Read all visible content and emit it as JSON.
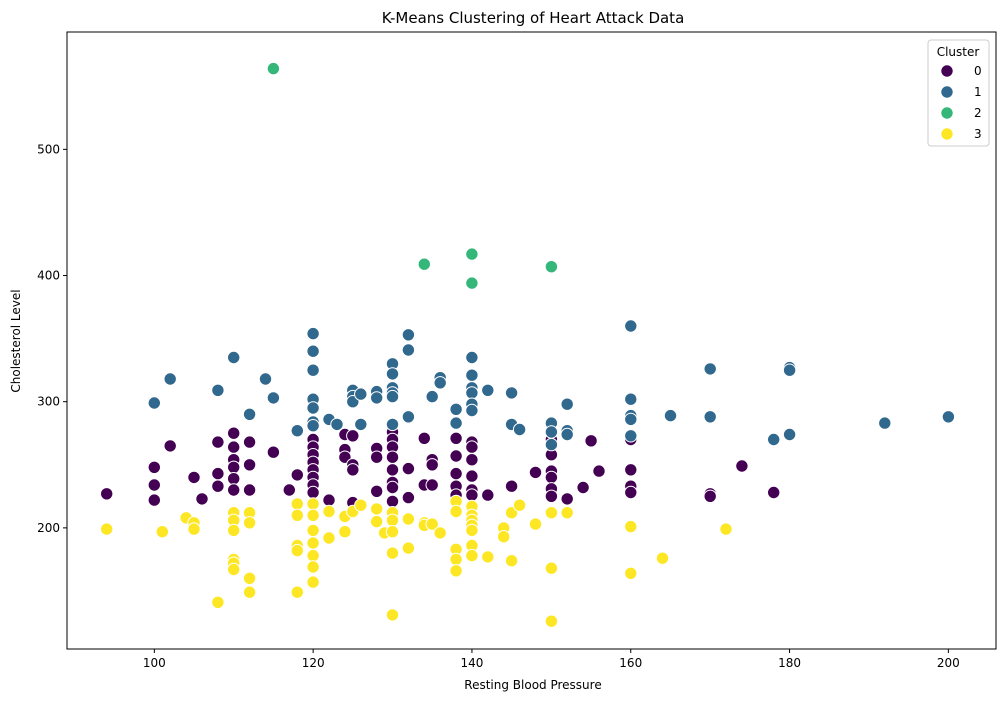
{
  "chart_data": {
    "type": "scatter",
    "title": "K-Means Clustering of Heart Attack Data",
    "xlabel": "Resting Blood Pressure",
    "ylabel": "Cholesterol Level",
    "xlim": [
      89,
      206
    ],
    "ylim": [
      104,
      593
    ],
    "xticks": [
      100,
      120,
      140,
      160,
      180,
      200
    ],
    "yticks": [
      200,
      300,
      400,
      500
    ],
    "grid": false,
    "legend": {
      "title": "Cluster",
      "placement": "top-right"
    },
    "series": [
      {
        "name": "0",
        "color": "#440154",
        "points": [
          [
            94,
            227
          ],
          [
            100,
            248
          ],
          [
            100,
            234
          ],
          [
            100,
            222
          ],
          [
            102,
            265
          ],
          [
            105,
            240
          ],
          [
            106,
            223
          ],
          [
            108,
            268
          ],
          [
            108,
            243
          ],
          [
            108,
            233
          ],
          [
            110,
            275
          ],
          [
            110,
            264
          ],
          [
            110,
            254
          ],
          [
            110,
            248
          ],
          [
            110,
            239
          ],
          [
            110,
            230
          ],
          [
            112,
            268
          ],
          [
            112,
            250
          ],
          [
            112,
            230
          ],
          [
            115,
            260
          ],
          [
            117,
            230
          ],
          [
            118,
            242
          ],
          [
            120,
            270
          ],
          [
            120,
            264
          ],
          [
            120,
            258
          ],
          [
            120,
            252
          ],
          [
            120,
            246
          ],
          [
            120,
            240
          ],
          [
            120,
            234
          ],
          [
            120,
            228
          ],
          [
            122,
            222
          ],
          [
            124,
            274
          ],
          [
            124,
            262
          ],
          [
            124,
            256
          ],
          [
            125,
            273
          ],
          [
            125,
            250
          ],
          [
            125,
            246
          ],
          [
            125,
            220
          ],
          [
            128,
            263
          ],
          [
            128,
            256
          ],
          [
            128,
            229
          ],
          [
            130,
            276
          ],
          [
            130,
            270
          ],
          [
            130,
            264
          ],
          [
            130,
            256
          ],
          [
            130,
            246
          ],
          [
            130,
            236
          ],
          [
            130,
            232
          ],
          [
            130,
            221
          ],
          [
            132,
            247
          ],
          [
            132,
            224
          ],
          [
            134,
            271
          ],
          [
            134,
            234
          ],
          [
            135,
            254
          ],
          [
            135,
            250
          ],
          [
            135,
            234
          ],
          [
            138,
            271
          ],
          [
            138,
            257
          ],
          [
            138,
            243
          ],
          [
            138,
            233
          ],
          [
            138,
            226
          ],
          [
            140,
            268
          ],
          [
            140,
            264
          ],
          [
            140,
            254
          ],
          [
            140,
            241
          ],
          [
            140,
            230
          ],
          [
            140,
            226
          ],
          [
            142,
            226
          ],
          [
            145,
            233
          ],
          [
            148,
            244
          ],
          [
            150,
            270
          ],
          [
            150,
            258
          ],
          [
            150,
            245
          ],
          [
            150,
            240
          ],
          [
            150,
            231
          ],
          [
            150,
            225
          ],
          [
            152,
            223
          ],
          [
            154,
            232
          ],
          [
            155,
            269
          ],
          [
            156,
            245
          ],
          [
            160,
            270
          ],
          [
            160,
            246
          ],
          [
            160,
            233
          ],
          [
            160,
            228
          ],
          [
            170,
            227
          ],
          [
            170,
            225
          ],
          [
            174,
            249
          ],
          [
            178,
            228
          ]
        ]
      },
      {
        "name": "1",
        "color": "#31688e",
        "points": [
          [
            100,
            299
          ],
          [
            102,
            318
          ],
          [
            108,
            309
          ],
          [
            110,
            335
          ],
          [
            112,
            290
          ],
          [
            114,
            318
          ],
          [
            115,
            303
          ],
          [
            118,
            277
          ],
          [
            120,
            354
          ],
          [
            120,
            340
          ],
          [
            120,
            325
          ],
          [
            120,
            302
          ],
          [
            120,
            295
          ],
          [
            120,
            284
          ],
          [
            120,
            281
          ],
          [
            122,
            286
          ],
          [
            123,
            282
          ],
          [
            125,
            309
          ],
          [
            125,
            304
          ],
          [
            125,
            300
          ],
          [
            126,
            306
          ],
          [
            126,
            282
          ],
          [
            128,
            308
          ],
          [
            128,
            303
          ],
          [
            130,
            330
          ],
          [
            130,
            322
          ],
          [
            130,
            311
          ],
          [
            130,
            307
          ],
          [
            130,
            304
          ],
          [
            130,
            282
          ],
          [
            132,
            353
          ],
          [
            132,
            341
          ],
          [
            132,
            288
          ],
          [
            135,
            304
          ],
          [
            136,
            319
          ],
          [
            136,
            315
          ],
          [
            138,
            294
          ],
          [
            138,
            283
          ],
          [
            140,
            335
          ],
          [
            140,
            321
          ],
          [
            140,
            311
          ],
          [
            140,
            307
          ],
          [
            140,
            298
          ],
          [
            140,
            293
          ],
          [
            142,
            309
          ],
          [
            145,
            307
          ],
          [
            145,
            282
          ],
          [
            146,
            278
          ],
          [
            150,
            283
          ],
          [
            150,
            276
          ],
          [
            150,
            266
          ],
          [
            152,
            298
          ],
          [
            152,
            277
          ],
          [
            152,
            274
          ],
          [
            160,
            360
          ],
          [
            160,
            302
          ],
          [
            160,
            289
          ],
          [
            160,
            286
          ],
          [
            160,
            273
          ],
          [
            165,
            289
          ],
          [
            170,
            326
          ],
          [
            170,
            288
          ],
          [
            178,
            270
          ],
          [
            180,
            327
          ],
          [
            180,
            325
          ],
          [
            180,
            274
          ],
          [
            192,
            283
          ],
          [
            200,
            288
          ]
        ]
      },
      {
        "name": "2",
        "color": "#35b779",
        "points": [
          [
            115,
            564
          ],
          [
            134,
            409
          ],
          [
            140,
            417
          ],
          [
            140,
            394
          ],
          [
            150,
            407
          ]
        ]
      },
      {
        "name": "3",
        "color": "#fde725",
        "points": [
          [
            94,
            199
          ],
          [
            101,
            197
          ],
          [
            104,
            208
          ],
          [
            105,
            204
          ],
          [
            105,
            199
          ],
          [
            108,
            141
          ],
          [
            110,
            212
          ],
          [
            110,
            206
          ],
          [
            110,
            198
          ],
          [
            110,
            175
          ],
          [
            110,
            172
          ],
          [
            110,
            167
          ],
          [
            112,
            212
          ],
          [
            112,
            204
          ],
          [
            112,
            160
          ],
          [
            112,
            149
          ],
          [
            118,
            219
          ],
          [
            118,
            210
          ],
          [
            118,
            186
          ],
          [
            118,
            182
          ],
          [
            118,
            149
          ],
          [
            120,
            219
          ],
          [
            120,
            210
          ],
          [
            120,
            198
          ],
          [
            120,
            188
          ],
          [
            120,
            178
          ],
          [
            120,
            169
          ],
          [
            120,
            157
          ],
          [
            122,
            213
          ],
          [
            122,
            192
          ],
          [
            124,
            209
          ],
          [
            124,
            197
          ],
          [
            125,
            213
          ],
          [
            126,
            218
          ],
          [
            128,
            215
          ],
          [
            128,
            205
          ],
          [
            129,
            196
          ],
          [
            130,
            212
          ],
          [
            130,
            206
          ],
          [
            130,
            197
          ],
          [
            130,
            180
          ],
          [
            130,
            131
          ],
          [
            132,
            207
          ],
          [
            132,
            184
          ],
          [
            134,
            204
          ],
          [
            134,
            202
          ],
          [
            135,
            203
          ],
          [
            136,
            196
          ],
          [
            138,
            221
          ],
          [
            138,
            213
          ],
          [
            138,
            183
          ],
          [
            138,
            175
          ],
          [
            138,
            166
          ],
          [
            140,
            217
          ],
          [
            140,
            210
          ],
          [
            140,
            206
          ],
          [
            140,
            202
          ],
          [
            140,
            198
          ],
          [
            140,
            186
          ],
          [
            140,
            178
          ],
          [
            142,
            177
          ],
          [
            144,
            200
          ],
          [
            144,
            193
          ],
          [
            145,
            212
          ],
          [
            145,
            174
          ],
          [
            146,
            218
          ],
          [
            148,
            203
          ],
          [
            150,
            212
          ],
          [
            150,
            168
          ],
          [
            150,
            126
          ],
          [
            152,
            212
          ],
          [
            160,
            201
          ],
          [
            160,
            164
          ],
          [
            164,
            176
          ],
          [
            172,
            199
          ]
        ]
      }
    ]
  }
}
